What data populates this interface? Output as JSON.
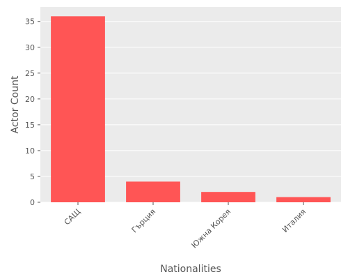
{
  "chart_data": {
    "type": "bar",
    "categories": [
      "САЩ",
      "Гърция",
      "Южна Корея",
      "Италия"
    ],
    "values": [
      36,
      4,
      2,
      1
    ],
    "xlabel": "Nationalities",
    "ylabel": "Actor Count",
    "ylim": [
      0,
      37.8
    ],
    "yticks": [
      0,
      5,
      10,
      15,
      20,
      25,
      30,
      35
    ],
    "grid": true,
    "bar_color": "#ff5555",
    "background_color": "#ebebeb",
    "grid_color": "#ffffff"
  }
}
